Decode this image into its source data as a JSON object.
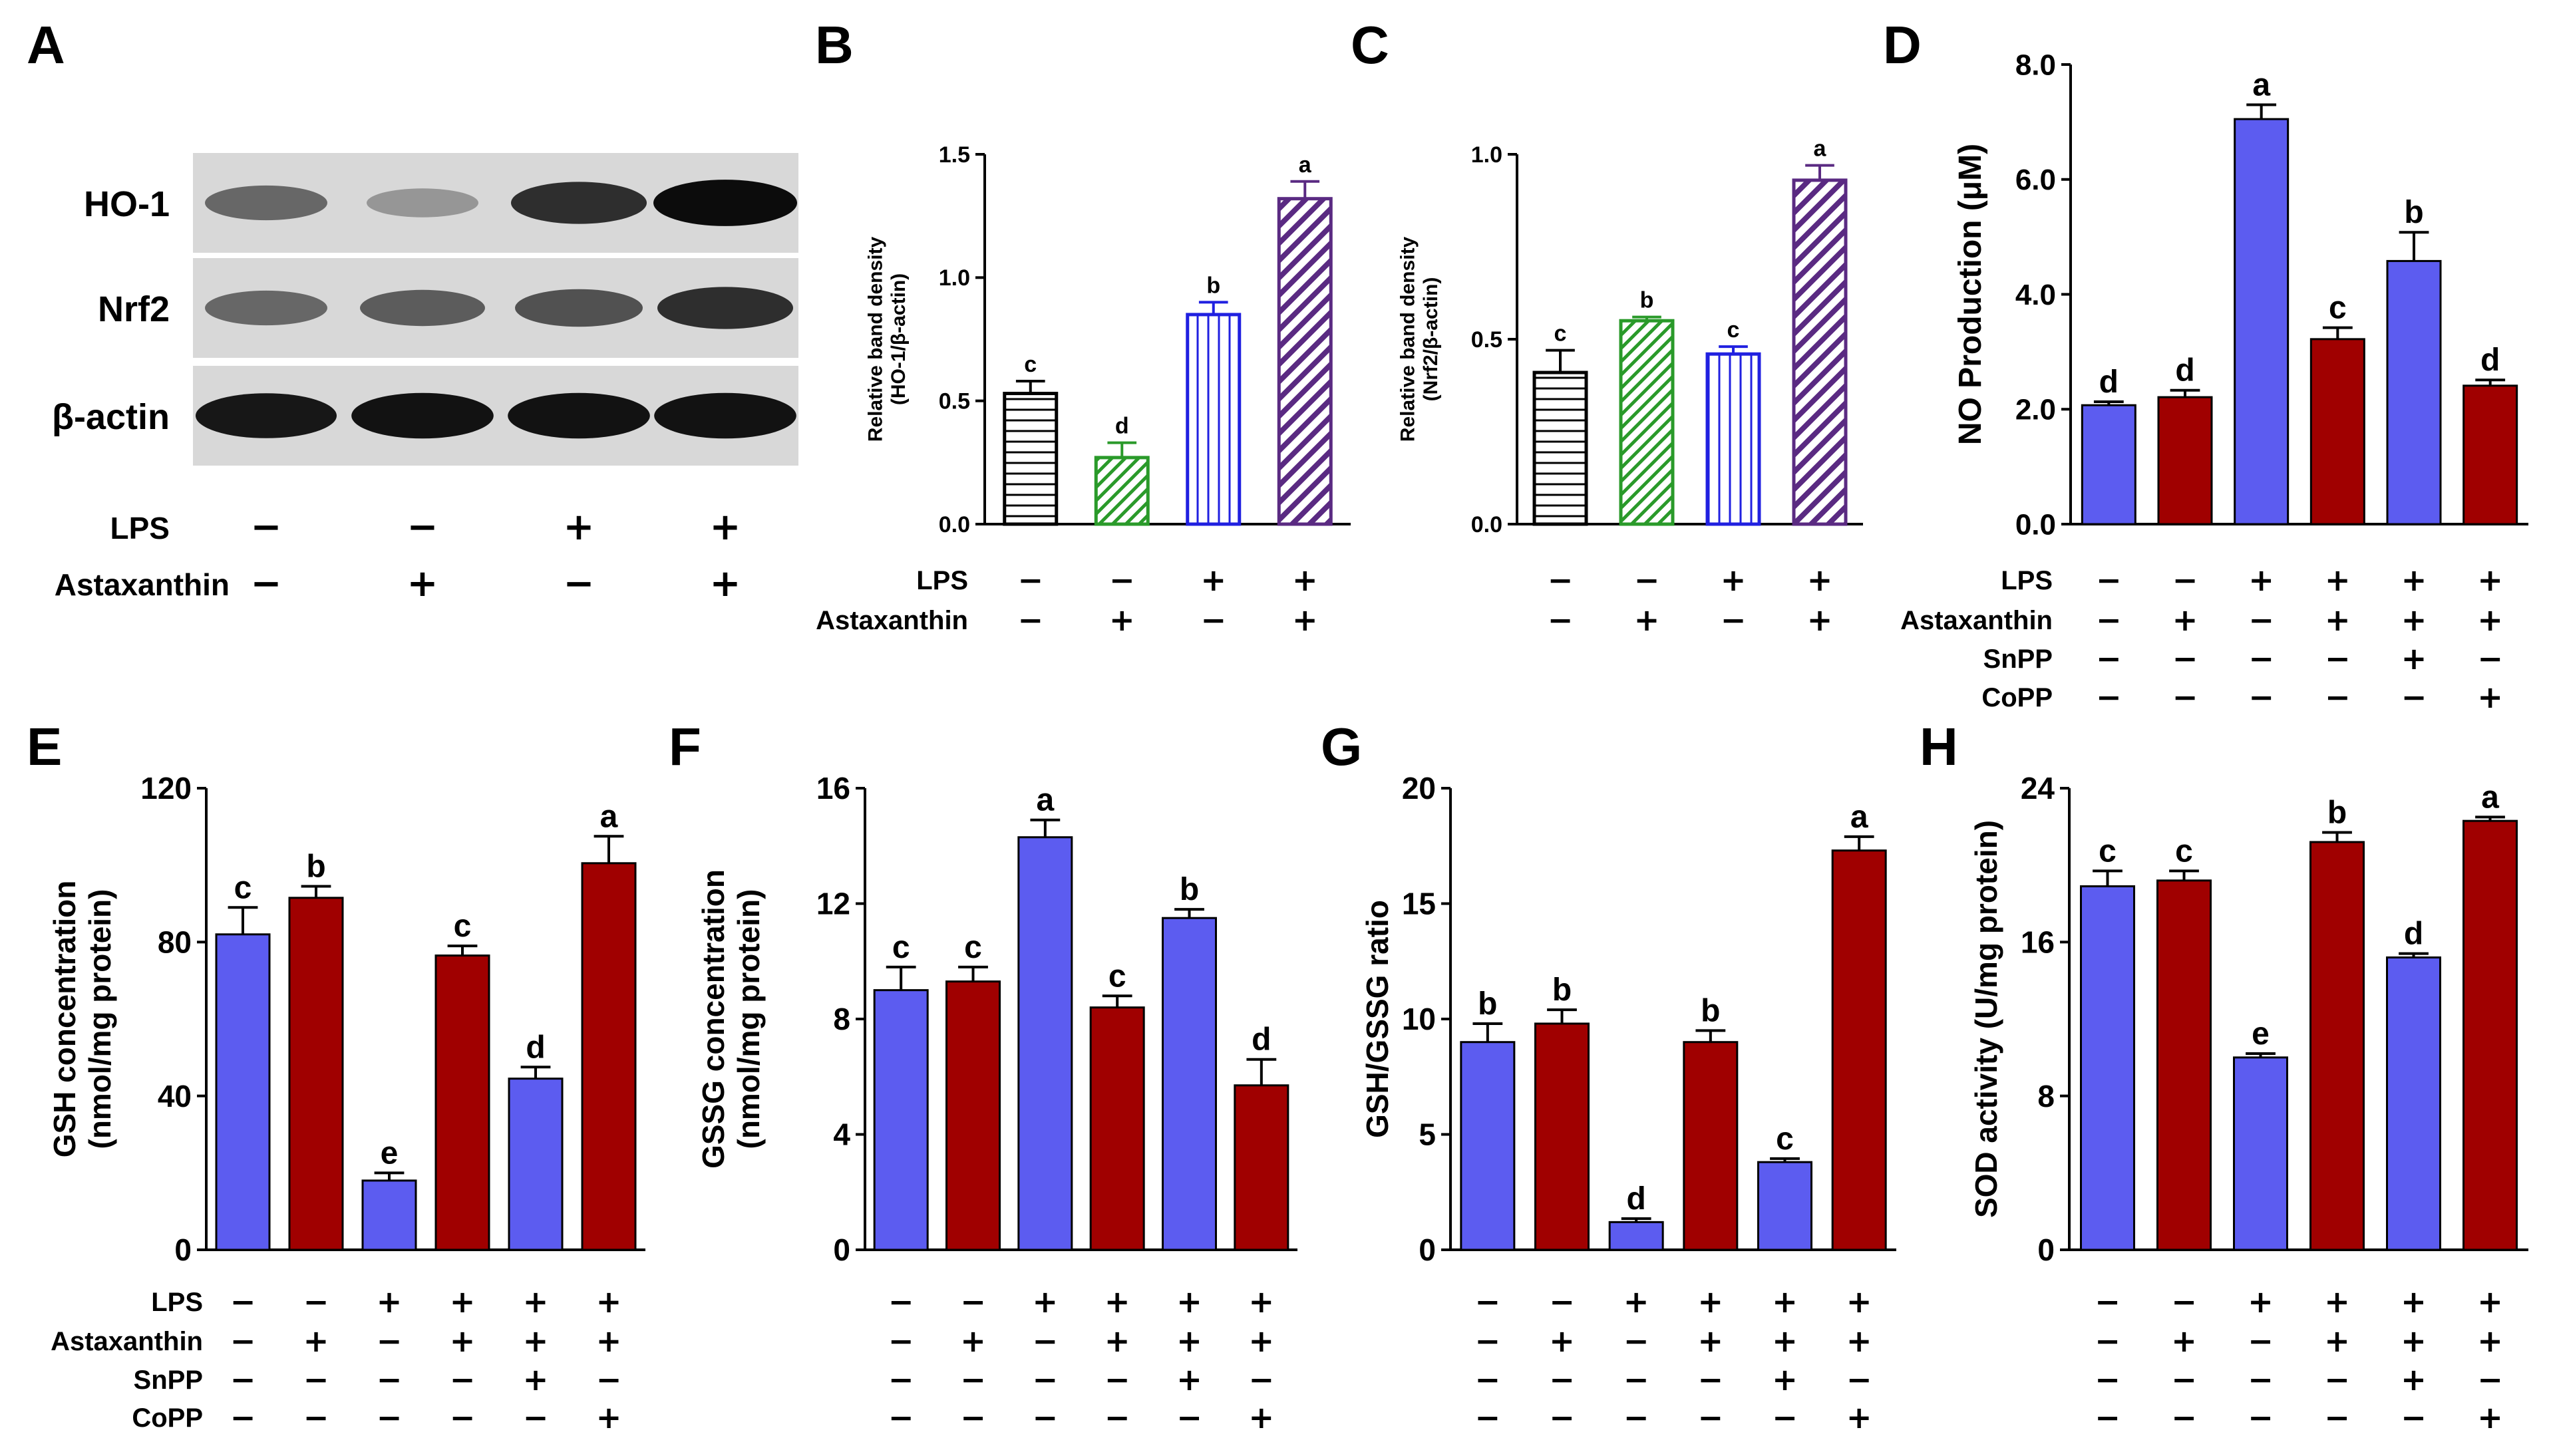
{
  "figure": {
    "colors": {
      "blue": "#5c5cf0",
      "red": "#a00000",
      "black": "#000000",
      "green": "#2a9a2a",
      "purple": "#5a2a82",
      "white": "#ffffff"
    }
  },
  "western_blot": {
    "letter": "A",
    "bands": [
      {
        "label": "HO-1",
        "intensities": [
          0.55,
          0.35,
          0.8,
          0.95
        ]
      },
      {
        "label": "Nrf2",
        "intensities": [
          0.55,
          0.6,
          0.65,
          0.8
        ]
      },
      {
        "label": "β-actin",
        "intensities": [
          0.9,
          0.92,
          0.92,
          0.92
        ]
      }
    ],
    "conditions": [
      {
        "label": "LPS",
        "signs": [
          "−",
          "−",
          "+",
          "+"
        ]
      },
      {
        "label": "Astaxanthin",
        "signs": [
          "−",
          "+",
          "−",
          "+"
        ]
      }
    ]
  },
  "chart_data": [
    {
      "letter": "B",
      "type": "bar",
      "style": "pattern",
      "ylabel": "Relative band density\n(HO-1/β-actin)",
      "ylim": [
        0,
        1.5
      ],
      "yticks": [
        "0.0",
        "0.5",
        "1.0",
        "1.5"
      ],
      "values": [
        0.53,
        0.27,
        0.85,
        1.32
      ],
      "errors": [
        0.05,
        0.06,
        0.05,
        0.07
      ],
      "letters": [
        "c",
        "d",
        "b",
        "a"
      ],
      "patterns": [
        "hline",
        "diag-fine",
        "vline",
        "diag-bold"
      ],
      "colors": [
        "#000000",
        "#2a9a2a",
        "#2020e0",
        "#5a2a82"
      ],
      "conditions": [
        {
          "label": "LPS",
          "signs": [
            "−",
            "−",
            "+",
            "+"
          ]
        },
        {
          "label": "Astaxanthin",
          "signs": [
            "−",
            "+",
            "−",
            "+"
          ]
        }
      ]
    },
    {
      "letter": "C",
      "type": "bar",
      "style": "pattern",
      "ylabel": "Relative band density\n(Nrf2/β-actin)",
      "ylim": [
        0,
        1.0
      ],
      "yticks": [
        "0.0",
        "0.5",
        "1.0"
      ],
      "values": [
        0.41,
        0.55,
        0.46,
        0.93
      ],
      "errors": [
        0.06,
        0.01,
        0.02,
        0.04
      ],
      "letters": [
        "c",
        "b",
        "c",
        "a"
      ],
      "patterns": [
        "hline",
        "diag-fine",
        "vline",
        "diag-bold"
      ],
      "colors": [
        "#000000",
        "#2a9a2a",
        "#2020e0",
        "#5a2a82"
      ],
      "conditions": [
        {
          "label": "",
          "signs": [
            "−",
            "−",
            "+",
            "+"
          ]
        },
        {
          "label": "",
          "signs": [
            "−",
            "+",
            "−",
            "+"
          ]
        }
      ]
    },
    {
      "letter": "D",
      "type": "bar",
      "style": "solid",
      "ylabel": "NO Production (μM)",
      "ylim": [
        0,
        8
      ],
      "yticks": [
        "0.0",
        "2.0",
        "4.0",
        "6.0",
        "8.0"
      ],
      "values": [
        2.07,
        2.21,
        7.05,
        3.22,
        4.58,
        2.41
      ],
      "errors": [
        0.06,
        0.12,
        0.25,
        0.2,
        0.5,
        0.1
      ],
      "letters": [
        "d",
        "d",
        "a",
        "c",
        "b",
        "d"
      ],
      "colors": [
        "#5c5cf0",
        "#a00000",
        "#5c5cf0",
        "#a00000",
        "#5c5cf0",
        "#a00000"
      ],
      "conditions": [
        {
          "label": "LPS",
          "signs": [
            "−",
            "−",
            "+",
            "+",
            "+",
            "+"
          ]
        },
        {
          "label": "Astaxanthin",
          "signs": [
            "−",
            "+",
            "−",
            "+",
            "+",
            "+"
          ]
        },
        {
          "label": "SnPP",
          "signs": [
            "−",
            "−",
            "−",
            "−",
            "+",
            "−"
          ]
        },
        {
          "label": "CoPP",
          "signs": [
            "−",
            "−",
            "−",
            "−",
            "−",
            "+"
          ]
        }
      ]
    },
    {
      "letter": "E",
      "type": "bar",
      "style": "solid",
      "ylabel": "GSH concentration\n(nmol/mg protein)",
      "ylim": [
        0,
        120
      ],
      "yticks": [
        "0",
        "40",
        "80",
        "120"
      ],
      "values": [
        82,
        91.5,
        18,
        76.5,
        44.5,
        100.5
      ],
      "errors": [
        7,
        3,
        2,
        2.5,
        3,
        7
      ],
      "letters": [
        "c",
        "b",
        "e",
        "c",
        "d",
        "a"
      ],
      "colors": [
        "#5c5cf0",
        "#a00000",
        "#5c5cf0",
        "#a00000",
        "#5c5cf0",
        "#a00000"
      ],
      "conditions": [
        {
          "label": "LPS",
          "signs": [
            "−",
            "−",
            "+",
            "+",
            "+",
            "+"
          ]
        },
        {
          "label": "Astaxanthin",
          "signs": [
            "−",
            "+",
            "−",
            "+",
            "+",
            "+"
          ]
        },
        {
          "label": "SnPP",
          "signs": [
            "−",
            "−",
            "−",
            "−",
            "+",
            "−"
          ]
        },
        {
          "label": "CoPP",
          "signs": [
            "−",
            "−",
            "−",
            "−",
            "−",
            "+"
          ]
        }
      ]
    },
    {
      "letter": "F",
      "type": "bar",
      "style": "solid",
      "ylabel": "GSSG concentration\n(nmol/mg protein)",
      "ylim": [
        0,
        16
      ],
      "yticks": [
        "0",
        "4",
        "8",
        "12",
        "16"
      ],
      "values": [
        9.0,
        9.3,
        14.3,
        8.4,
        11.5,
        5.7
      ],
      "errors": [
        0.8,
        0.5,
        0.6,
        0.4,
        0.3,
        0.9
      ],
      "letters": [
        "c",
        "c",
        "a",
        "c",
        "b",
        "d"
      ],
      "colors": [
        "#5c5cf0",
        "#a00000",
        "#5c5cf0",
        "#a00000",
        "#5c5cf0",
        "#a00000"
      ],
      "conditions": [
        {
          "label": "",
          "signs": [
            "−",
            "−",
            "+",
            "+",
            "+",
            "+"
          ]
        },
        {
          "label": "",
          "signs": [
            "−",
            "+",
            "−",
            "+",
            "+",
            "+"
          ]
        },
        {
          "label": "",
          "signs": [
            "−",
            "−",
            "−",
            "−",
            "+",
            "−"
          ]
        },
        {
          "label": "",
          "signs": [
            "−",
            "−",
            "−",
            "−",
            "−",
            "+"
          ]
        }
      ]
    },
    {
      "letter": "G",
      "type": "bar",
      "style": "solid",
      "ylabel": "GSH/GSSG ratio",
      "ylim": [
        0,
        20
      ],
      "yticks": [
        "0",
        "5",
        "10",
        "15",
        "20"
      ],
      "values": [
        9.0,
        9.8,
        1.2,
        9.0,
        3.8,
        17.3
      ],
      "errors": [
        0.8,
        0.6,
        0.15,
        0.5,
        0.15,
        0.6
      ],
      "letters": [
        "b",
        "b",
        "d",
        "b",
        "c",
        "a"
      ],
      "colors": [
        "#5c5cf0",
        "#a00000",
        "#5c5cf0",
        "#a00000",
        "#5c5cf0",
        "#a00000"
      ],
      "conditions": [
        {
          "label": "",
          "signs": [
            "−",
            "−",
            "+",
            "+",
            "+",
            "+"
          ]
        },
        {
          "label": "",
          "signs": [
            "−",
            "+",
            "−",
            "+",
            "+",
            "+"
          ]
        },
        {
          "label": "",
          "signs": [
            "−",
            "−",
            "−",
            "−",
            "+",
            "−"
          ]
        },
        {
          "label": "",
          "signs": [
            "−",
            "−",
            "−",
            "−",
            "−",
            "+"
          ]
        }
      ]
    },
    {
      "letter": "H",
      "type": "bar",
      "style": "solid",
      "ylabel": "SOD activity (U/mg protein)",
      "ylim": [
        0,
        24
      ],
      "yticks": [
        "0",
        "8",
        "16",
        "24"
      ],
      "values": [
        18.9,
        19.2,
        10.0,
        21.2,
        15.2,
        22.3
      ],
      "errors": [
        0.8,
        0.5,
        0.2,
        0.5,
        0.2,
        0.2
      ],
      "letters": [
        "c",
        "c",
        "e",
        "b",
        "d",
        "a"
      ],
      "colors": [
        "#5c5cf0",
        "#a00000",
        "#5c5cf0",
        "#a00000",
        "#5c5cf0",
        "#a00000"
      ],
      "conditions": [
        {
          "label": "",
          "signs": [
            "−",
            "−",
            "+",
            "+",
            "+",
            "+"
          ]
        },
        {
          "label": "",
          "signs": [
            "−",
            "+",
            "−",
            "+",
            "+",
            "+"
          ]
        },
        {
          "label": "",
          "signs": [
            "−",
            "−",
            "−",
            "−",
            "+",
            "−"
          ]
        },
        {
          "label": "",
          "signs": [
            "−",
            "−",
            "−",
            "−",
            "−",
            "+"
          ]
        }
      ]
    }
  ]
}
